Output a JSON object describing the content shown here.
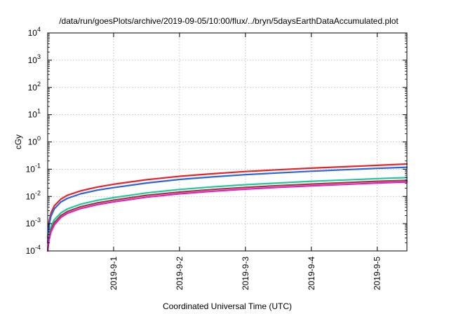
{
  "chart_data": {
    "type": "line",
    "title": "/data/run/goesPlots/archive/2019-09-05/10:00/flux/../bryn/5daysEarthDataAccumulated.plot",
    "xlabel": "Coordinated Universal Time (UTC)",
    "ylabel": "cGy",
    "y_scale": "log",
    "ylim": [
      0.0001,
      10000
    ],
    "xlim": [
      0,
      5.45
    ],
    "x_unit": "days since 2019-08-31 00:00 UTC",
    "x_ticks": [
      {
        "x": 1,
        "label": "2019-9-1"
      },
      {
        "x": 2,
        "label": "2019-9-2"
      },
      {
        "x": 3,
        "label": "2019-9-3"
      },
      {
        "x": 4,
        "label": "2019-9-4"
      },
      {
        "x": 5,
        "label": "2019-9-5"
      }
    ],
    "y_ticks": [
      {
        "value": 0.0001,
        "base": "10",
        "exp": "-4"
      },
      {
        "value": 0.001,
        "base": "10",
        "exp": "-3"
      },
      {
        "value": 0.01,
        "base": "10",
        "exp": "-2"
      },
      {
        "value": 0.1,
        "base": "10",
        "exp": "-1"
      },
      {
        "value": 1,
        "base": "10",
        "exp": "0"
      },
      {
        "value": 10,
        "base": "10",
        "exp": "1"
      },
      {
        "value": 100,
        "base": "10",
        "exp": "2"
      },
      {
        "value": 1000,
        "base": "10",
        "exp": "3"
      },
      {
        "value": 10000,
        "base": "10",
        "exp": "4"
      }
    ],
    "grid": true,
    "legend": "none",
    "series": [
      {
        "color": "#e8232a",
        "x": [
          0,
          0.02,
          0.05,
          0.1,
          0.2,
          0.3,
          0.5,
          0.75,
          1,
          1.5,
          2,
          2.5,
          3,
          3.5,
          4,
          4.5,
          5,
          5.45
        ],
        "values": [
          0.0003,
          0.0012,
          0.0025,
          0.0045,
          0.008,
          0.011,
          0.016,
          0.022,
          0.028,
          0.041,
          0.055,
          0.068,
          0.082,
          0.095,
          0.109,
          0.123,
          0.138,
          0.155
        ]
      },
      {
        "color": "#2b63e0",
        "x": [
          0,
          0.02,
          0.05,
          0.1,
          0.2,
          0.3,
          0.5,
          0.75,
          1,
          1.5,
          2,
          2.5,
          3,
          3.5,
          4,
          4.5,
          5,
          5.45
        ],
        "values": [
          0.0002,
          0.0009,
          0.0019,
          0.0035,
          0.0063,
          0.0085,
          0.0125,
          0.017,
          0.021,
          0.031,
          0.042,
          0.052,
          0.063,
          0.073,
          0.084,
          0.095,
          0.107,
          0.118
        ]
      },
      {
        "color": "#20c9a0",
        "x": [
          0,
          0.02,
          0.05,
          0.1,
          0.2,
          0.3,
          0.5,
          0.75,
          1,
          1.5,
          2,
          2.5,
          3,
          3.5,
          4,
          4.5,
          5,
          5.45
        ],
        "values": [
          0.00012,
          0.0004,
          0.0008,
          0.0014,
          0.0025,
          0.0035,
          0.0052,
          0.0072,
          0.009,
          0.0135,
          0.018,
          0.0225,
          0.027,
          0.031,
          0.036,
          0.04,
          0.045,
          0.049
        ]
      },
      {
        "color": "#a23a3a",
        "x": [
          0,
          0.02,
          0.05,
          0.1,
          0.2,
          0.3,
          0.5,
          0.75,
          1,
          1.5,
          2,
          2.5,
          3,
          3.5,
          4,
          4.5,
          5,
          5.45
        ],
        "values": [
          0.0001,
          0.0003,
          0.0006,
          0.0011,
          0.002,
          0.0028,
          0.0042,
          0.0058,
          0.0073,
          0.011,
          0.0145,
          0.018,
          0.0215,
          0.025,
          0.0285,
          0.032,
          0.036,
          0.039
        ]
      },
      {
        "color": "#e020c8",
        "x": [
          0,
          0.02,
          0.05,
          0.1,
          0.2,
          0.3,
          0.5,
          0.75,
          1,
          1.5,
          2,
          2.5,
          3,
          3.5,
          4,
          4.5,
          5,
          5.45
        ],
        "values": [
          0.0001,
          0.00025,
          0.0005,
          0.0009,
          0.0017,
          0.0024,
          0.0036,
          0.005,
          0.0063,
          0.0094,
          0.0125,
          0.0155,
          0.0185,
          0.0215,
          0.0245,
          0.0275,
          0.031,
          0.034
        ]
      }
    ]
  }
}
